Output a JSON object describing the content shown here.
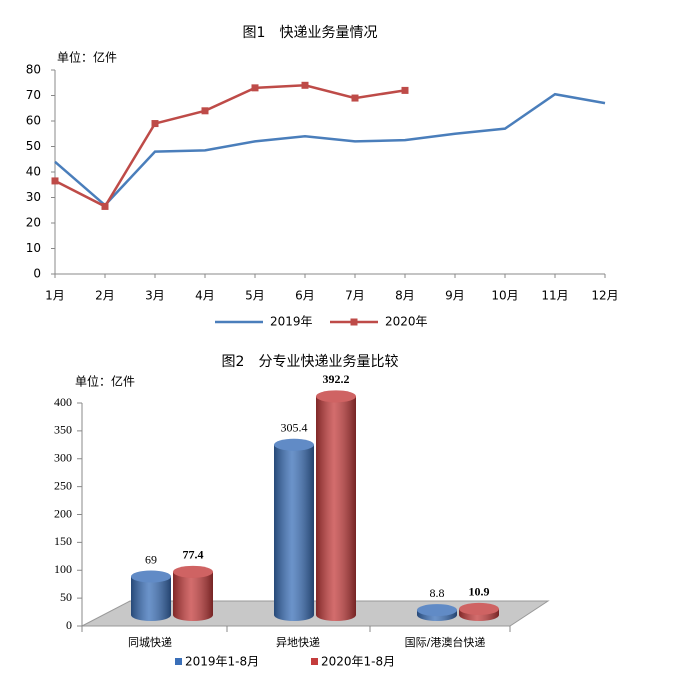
{
  "chart_data": [
    {
      "type": "line",
      "title": "图1　快递业务量情况",
      "ylabel": "单位：亿件",
      "categories": [
        "1月",
        "2月",
        "3月",
        "4月",
        "5月",
        "6月",
        "7月",
        "8月",
        "9月",
        "10月",
        "11月",
        "12月"
      ],
      "series": [
        {
          "name": "2019年",
          "color": "#4a7ebb",
          "values": [
            44,
            27,
            48,
            48.5,
            52,
            54,
            52,
            52.5,
            55,
            57,
            70.5,
            67
          ]
        },
        {
          "name": "2020年",
          "color": "#be4b48",
          "marker": "square",
          "values": [
            36.5,
            26.5,
            59,
            64,
            73,
            74,
            69,
            72,
            null,
            null,
            null,
            null
          ]
        }
      ],
      "ylim": [
        0,
        80
      ],
      "yticks": [
        0,
        10,
        20,
        30,
        40,
        50,
        60,
        70,
        80
      ],
      "legend": "bottom"
    },
    {
      "type": "bar",
      "title": "图2　分专业快递业务量比较",
      "ylabel": "单位：亿件",
      "categories": [
        "同城快递",
        "异地快递",
        "国际/港澳台快递"
      ],
      "series": [
        {
          "name": "2019年1-8月",
          "color": "#3a6fb8",
          "values": [
            69,
            305.4,
            8.8
          ]
        },
        {
          "name": "2020年1-8月",
          "color": "#c43c3c",
          "values": [
            77.4,
            392.2,
            10.9
          ]
        }
      ],
      "ylim": [
        0,
        400
      ],
      "yticks": [
        0,
        50,
        100,
        150,
        200,
        250,
        300,
        350,
        400
      ],
      "legend": "bottom"
    }
  ]
}
